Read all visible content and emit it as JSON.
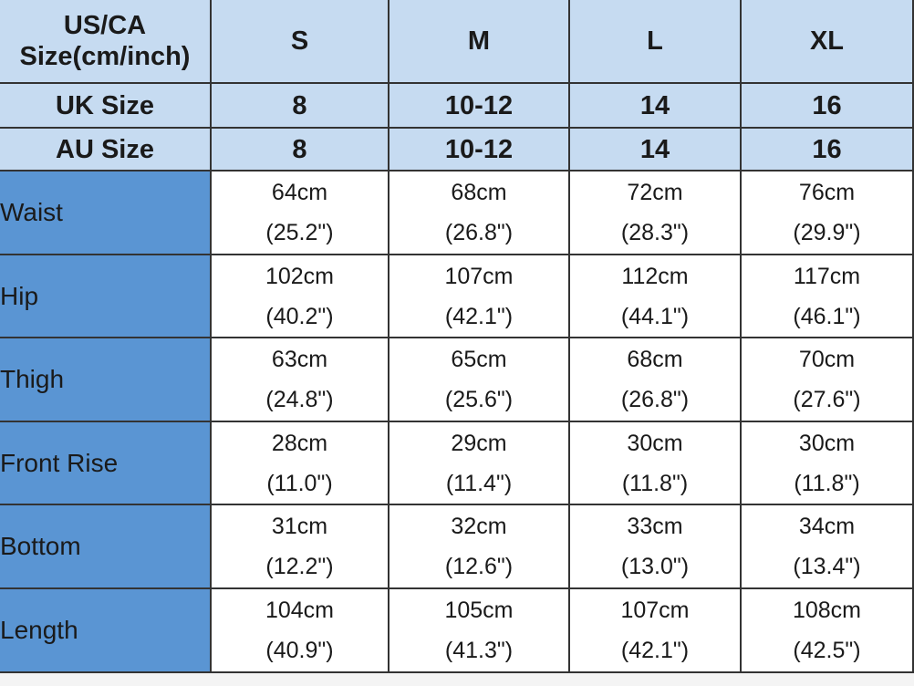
{
  "table": {
    "header": [
      [
        "US/CA",
        "Size(cm/inch)"
      ],
      "S",
      "M",
      "L",
      "XL"
    ],
    "size_rows": [
      {
        "label": "UK Size",
        "values": [
          "8",
          "10-12",
          "14",
          "16"
        ]
      },
      {
        "label": "AU Size",
        "values": [
          "8",
          "10-12",
          "14",
          "16"
        ]
      }
    ],
    "measurements": [
      {
        "label": "Waist",
        "cells": [
          [
            "64cm",
            "(25.2\")"
          ],
          [
            "68cm",
            "(26.8\")"
          ],
          [
            "72cm",
            "(28.3\")"
          ],
          [
            "76cm",
            "(29.9\")"
          ]
        ]
      },
      {
        "label": "Hip",
        "cells": [
          [
            "102cm",
            "(40.2\")"
          ],
          [
            "107cm",
            "(42.1\")"
          ],
          [
            "112cm",
            "(44.1\")"
          ],
          [
            "117cm",
            "(46.1\")"
          ]
        ]
      },
      {
        "label": "Thigh",
        "cells": [
          [
            "63cm",
            "(24.8\")"
          ],
          [
            "65cm",
            "(25.6\")"
          ],
          [
            "68cm",
            "(26.8\")"
          ],
          [
            "70cm",
            "(27.6\")"
          ]
        ]
      },
      {
        "label": "Front Rise",
        "cells": [
          [
            "28cm",
            "(11.0\")"
          ],
          [
            "29cm",
            "(11.4\")"
          ],
          [
            "30cm",
            "(11.8\")"
          ],
          [
            "30cm",
            "(11.8\")"
          ]
        ]
      },
      {
        "label": "Bottom",
        "cells": [
          [
            "31cm",
            "(12.2\")"
          ],
          [
            "32cm",
            "(12.6\")"
          ],
          [
            "33cm",
            "(13.0\")"
          ],
          [
            "34cm",
            "(13.4\")"
          ]
        ]
      },
      {
        "label": "Length",
        "cells": [
          [
            "104cm",
            "(40.9\")"
          ],
          [
            "105cm",
            "(41.3\")"
          ],
          [
            "107cm",
            "(42.1\")"
          ],
          [
            "108cm",
            "(42.5\")"
          ]
        ]
      }
    ]
  }
}
